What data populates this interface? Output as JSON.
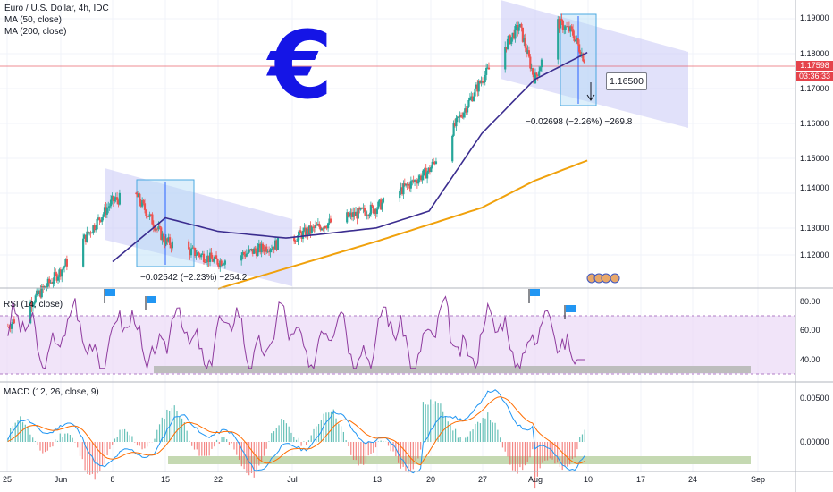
{
  "legend": {
    "symbol": "Euro / U.S. Dollar, 4h, IDC",
    "ma50": "MA (50, close)",
    "ma200": "MA (200, close)"
  },
  "rsi_label": "RSI (14, close)",
  "macd_label": "MACD (12, 26, close, 9)",
  "euro_sign": "€",
  "price_axis": [
    "1.19000",
    "1.18000",
    "1.17000",
    "1.16000",
    "1.15000",
    "1.14000",
    "1.13000",
    "1.12000"
  ],
  "rsi_axis": [
    "80.00",
    "60.00",
    "40.00"
  ],
  "macd_axis": [
    "0.00500",
    "0.00000"
  ],
  "time_axis": [
    "25",
    "Jun",
    "8",
    "15",
    "22",
    "Jul",
    "13",
    "20",
    "27",
    "Aug",
    "10",
    "17",
    "24",
    "Sep"
  ],
  "last_price": "1.17598",
  "countdown": "03:36:33",
  "annotations": {
    "june_move": "−0.02542 (−2.23%) −254.2",
    "aug_move": "−0.02698 (−2.26%) −269.8",
    "target": "1.16500"
  },
  "colors": {
    "ma50": "#3b2d8f",
    "ma200": "#f0a10c",
    "up_candle": "#26a69a",
    "down_candle": "#ef5350",
    "rsi": "#8e3a9e",
    "macd": "#2196f3",
    "signal": "#ff6d00",
    "channel": "#c9c9f5",
    "last_price_line": "#e5434b"
  },
  "chart_data": {
    "type": "line",
    "title": "Euro / U.S. Dollar, 4h, IDC",
    "price_ylim": [
      1.1125,
      1.195
    ],
    "price_keypoints": {
      "x": [
        "May 25",
        "Jun 1",
        "Jun 8",
        "Jun 11",
        "Jun 15",
        "Jun 22",
        "Jul 1",
        "Jul 6",
        "Jul 13",
        "Jul 20",
        "Jul 27",
        "Aug 1",
        "Aug 3",
        "Aug 6",
        "Aug 8",
        "Aug 10"
      ],
      "close": [
        1.0985,
        1.115,
        1.136,
        1.138,
        1.124,
        1.118,
        1.124,
        1.129,
        1.134,
        1.145,
        1.172,
        1.188,
        1.172,
        1.189,
        1.186,
        1.176
      ]
    },
    "ma50_keypoints": {
      "x": [
        "Jun 8",
        "Jun 15",
        "Jun 22",
        "Jul 1",
        "Jul 13",
        "Jul 20",
        "Jul 27",
        "Aug 3",
        "Aug 10"
      ],
      "value": [
        1.118,
        1.131,
        1.127,
        1.125,
        1.128,
        1.133,
        1.156,
        1.172,
        1.18
      ]
    },
    "ma200_keypoints": {
      "x": [
        "Jun 22",
        "Jul 1",
        "Jul 13",
        "Jul 20",
        "Jul 27",
        "Aug 3",
        "Aug 10"
      ],
      "value": [
        1.11,
        1.116,
        1.124,
        1.129,
        1.134,
        1.142,
        1.148
      ]
    },
    "rsi_ylim": [
      30,
      85
    ],
    "macd_ylim": [
      -0.0035,
      0.0065
    ]
  }
}
